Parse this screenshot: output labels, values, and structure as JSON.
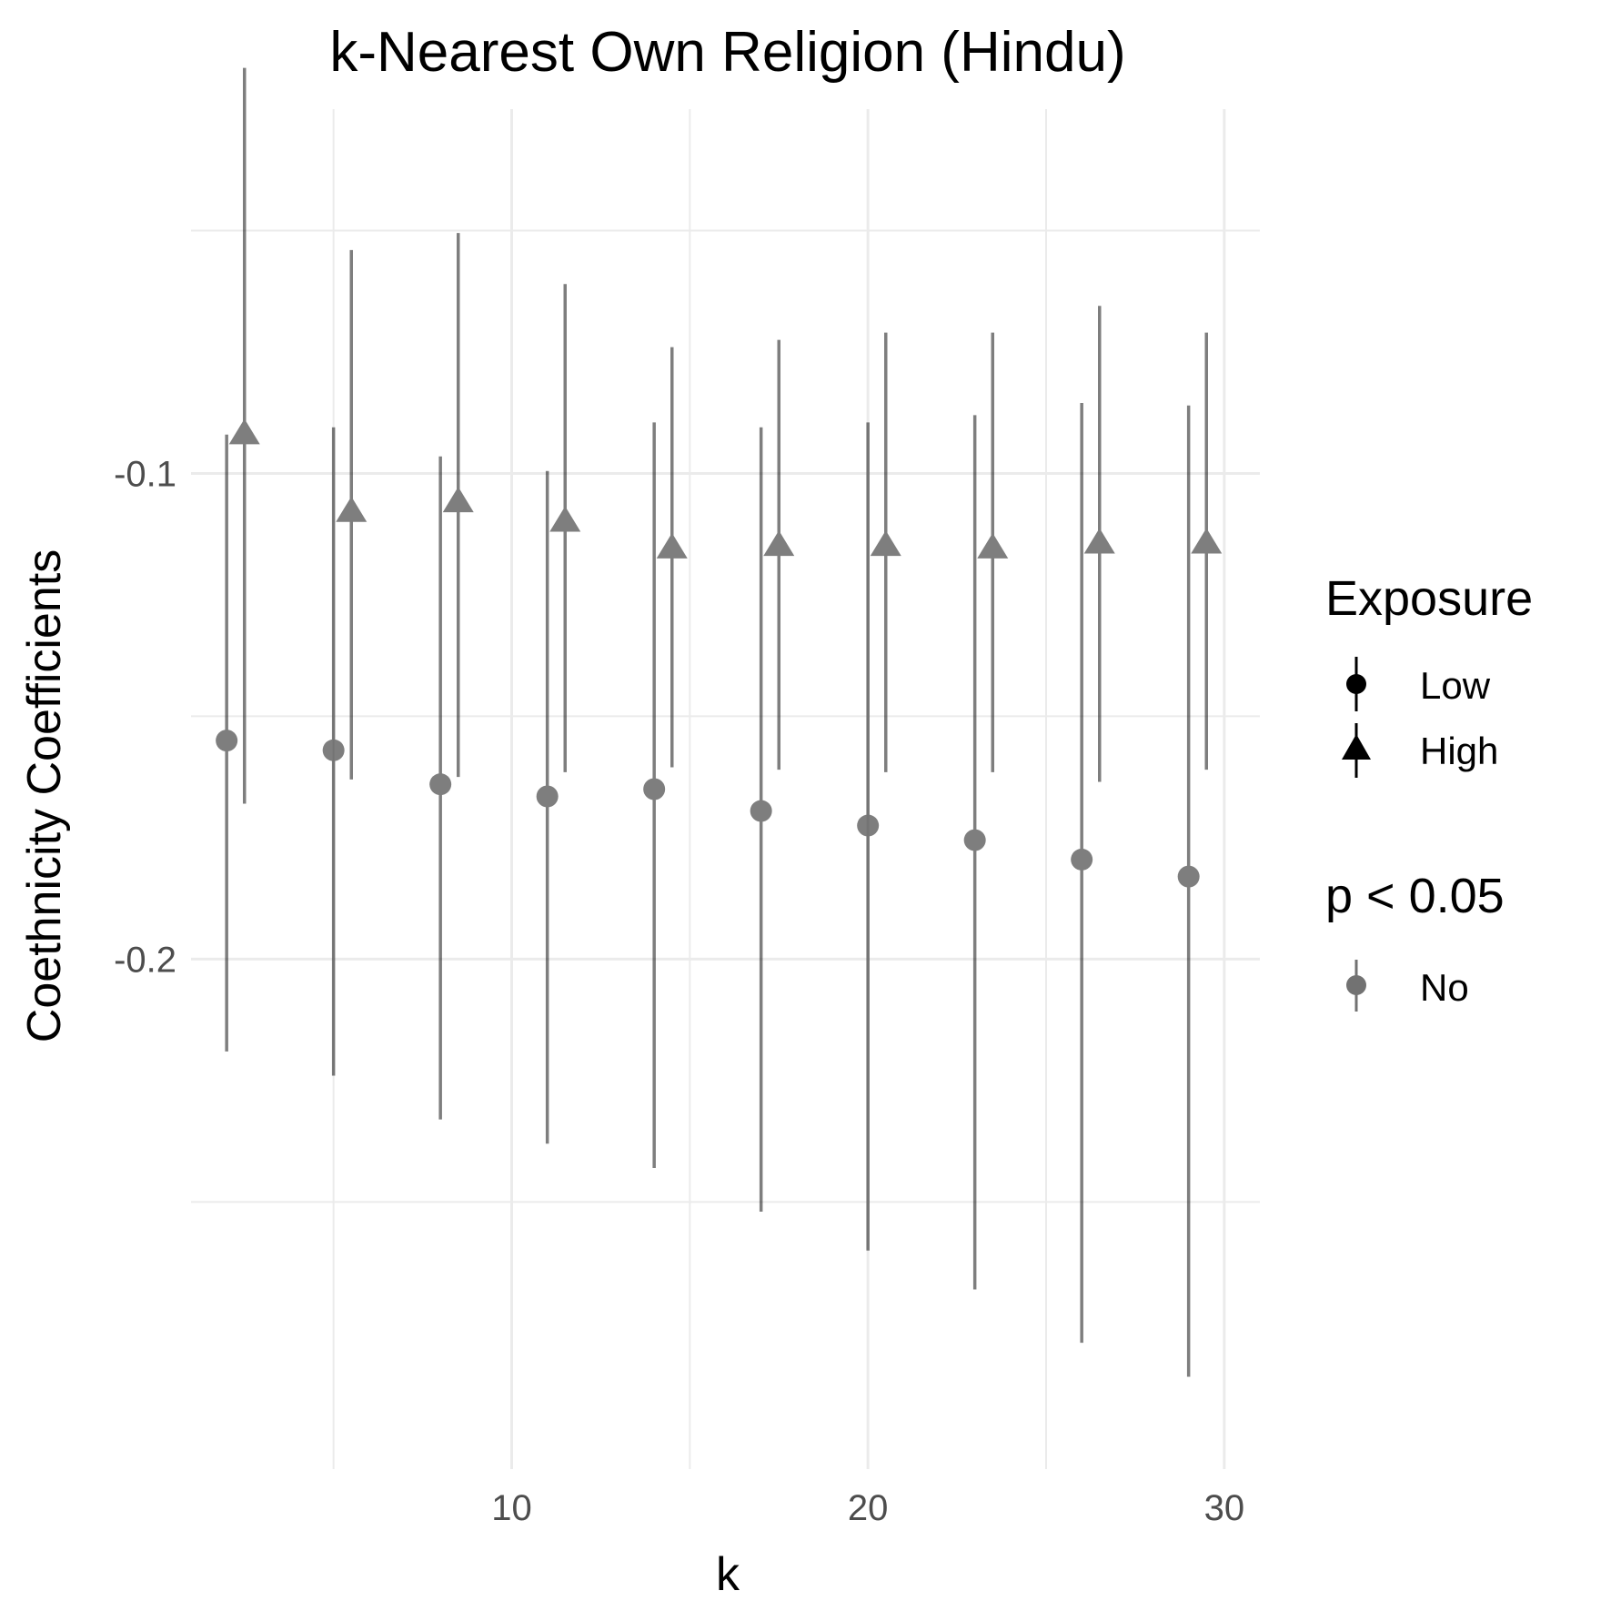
{
  "chart_data": {
    "type": "scatter",
    "title": "k-Nearest Own Religion (Hindu)",
    "xlabel": "k",
    "ylabel": "Coethnicity Coefficients",
    "x_ticks": [
      10,
      20,
      30
    ],
    "y_ticks": [
      -0.1,
      -0.2
    ],
    "y_tick_labels": [
      "-0.1",
      "-0.2"
    ],
    "xlim": [
      1,
      31
    ],
    "ylim": [
      -0.305,
      -0.025
    ],
    "grid": true,
    "color": "#000000",
    "opacity": 0.5,
    "series": [
      {
        "name": "Low",
        "shape": "circle",
        "x": [
          2,
          5,
          8,
          11,
          14,
          17,
          20,
          23,
          26,
          29
        ],
        "y": [
          -0.155,
          -0.157,
          -0.164,
          -0.1665,
          -0.165,
          -0.1695,
          -0.1725,
          -0.1755,
          -0.1795,
          -0.183
        ],
        "ci_low": [
          -0.219,
          -0.224,
          -0.233,
          -0.238,
          -0.243,
          -0.252,
          -0.26,
          -0.268,
          -0.279,
          -0.286
        ],
        "ci_high": [
          -0.092,
          -0.0905,
          -0.0965,
          -0.0995,
          -0.0895,
          -0.0905,
          -0.0895,
          -0.088,
          -0.0855,
          -0.086
        ]
      },
      {
        "name": "High",
        "shape": "triangle",
        "x": [
          2.5,
          5.5,
          8.5,
          11.5,
          14.5,
          17.5,
          20.5,
          23.5,
          26.5,
          29.5
        ],
        "y": [
          -0.092,
          -0.108,
          -0.106,
          -0.11,
          -0.1155,
          -0.115,
          -0.115,
          -0.1155,
          -0.1145,
          -0.1145
        ],
        "ci_low": [
          -0.168,
          -0.163,
          -0.1625,
          -0.1615,
          -0.1605,
          -0.161,
          -0.1615,
          -0.1615,
          -0.1635,
          -0.161
        ],
        "ci_high": [
          -0.0165,
          -0.054,
          -0.0505,
          -0.061,
          -0.074,
          -0.0725,
          -0.071,
          -0.071,
          -0.0655,
          -0.071
        ]
      }
    ],
    "legend": {
      "position": "right",
      "exposure_title": "Exposure",
      "exposure_items": [
        "Low",
        "High"
      ],
      "p_title": "p < 0.05",
      "p_items": [
        "No"
      ]
    }
  }
}
